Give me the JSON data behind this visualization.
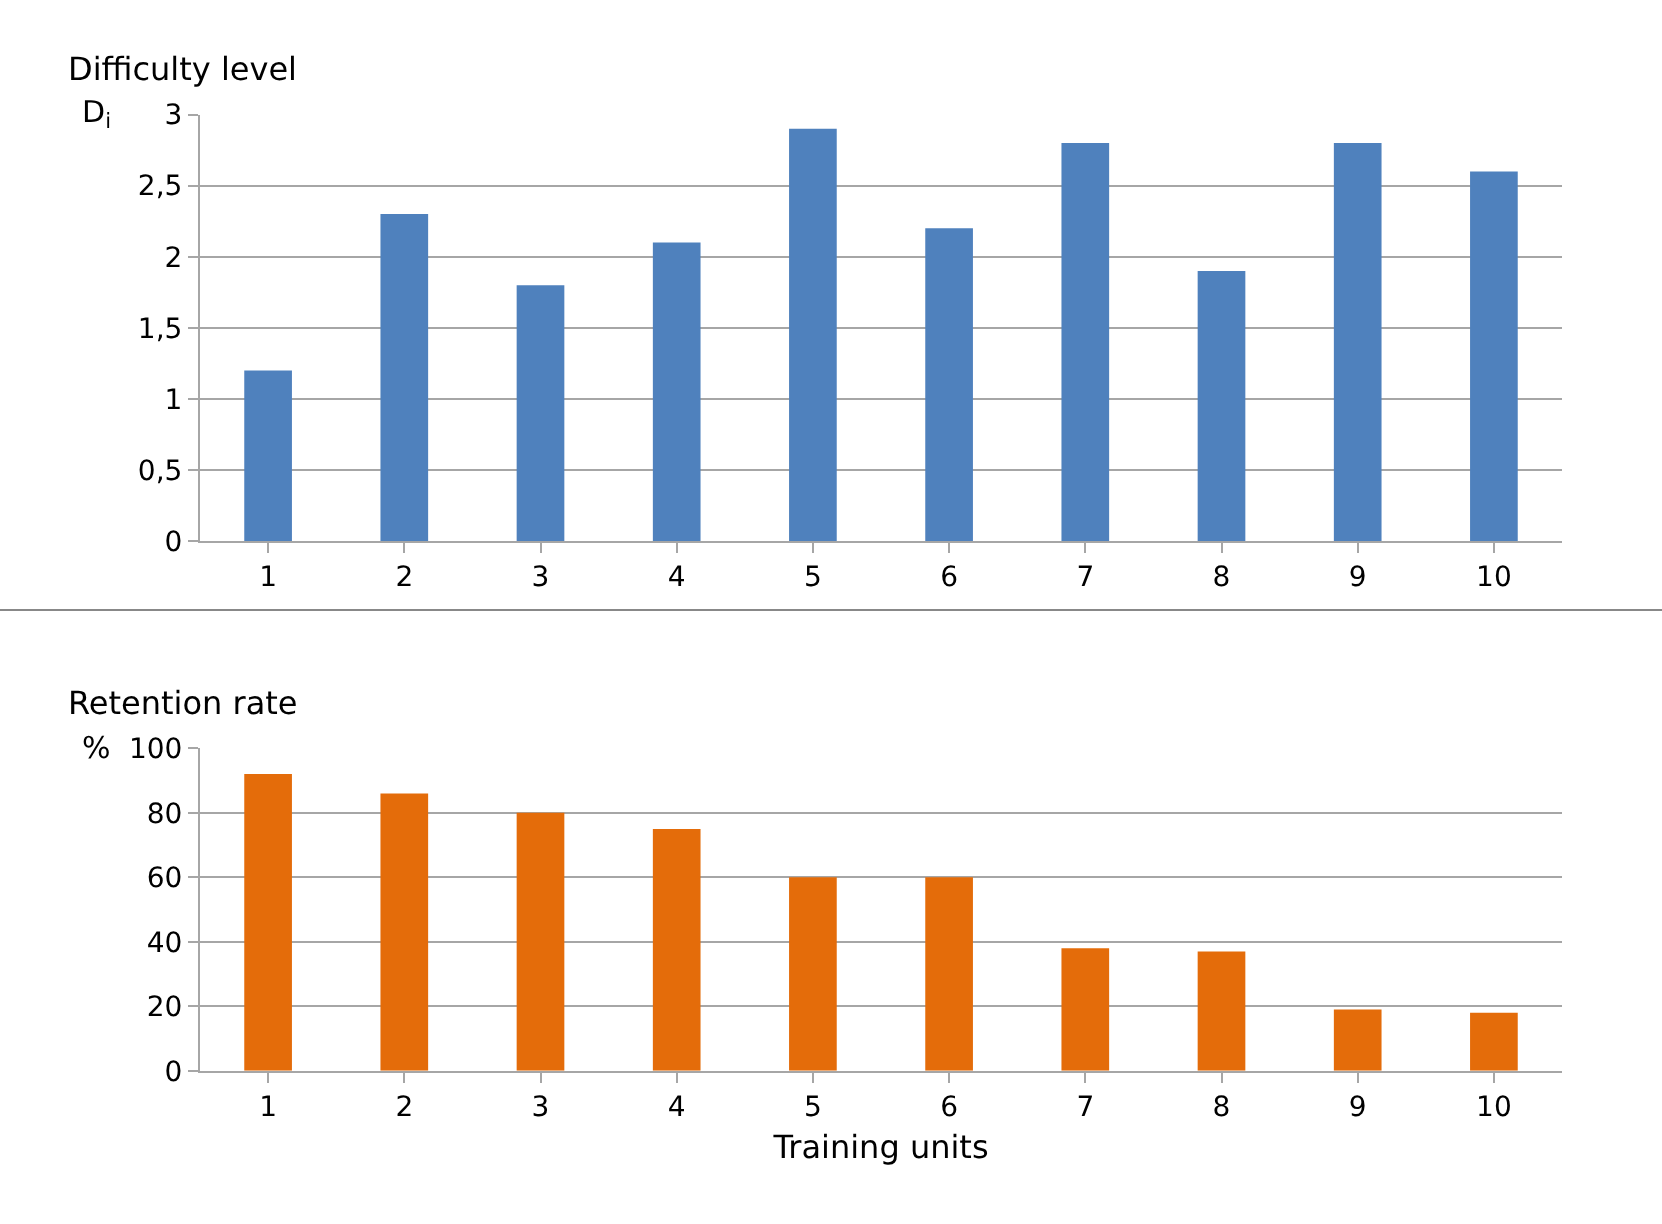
{
  "chart_data": [
    {
      "type": "bar",
      "title": "Difficulty level",
      "ylabel": "D$_{i}$",
      "categories": [
        "1",
        "2",
        "3",
        "4",
        "5",
        "6",
        "7",
        "8",
        "9",
        "10"
      ],
      "values": [
        1.2,
        2.3,
        1.8,
        2.1,
        2.9,
        2.2,
        2.8,
        1.9,
        2.8,
        2.6
      ],
      "color": "#4f81bd",
      "ylim": [
        0,
        3
      ],
      "yticks": [
        0,
        {
          "value": 0.5,
          "label": "0,5"
        },
        1,
        {
          "value": 1.5,
          "label": "1,5"
        },
        2,
        {
          "value": 2.5,
          "label": "2,5"
        },
        3
      ],
      "grid": "y"
    },
    {
      "type": "bar",
      "title": "Retention rate",
      "ylabel": "%",
      "xlabel": "Training units",
      "categories": [
        "1",
        "2",
        "3",
        "4",
        "5",
        "6",
        "7",
        "8",
        "9",
        "10"
      ],
      "values": [
        92,
        86,
        80,
        75,
        60,
        60,
        38,
        37,
        19,
        18
      ],
      "color": "#e46c0a",
      "ylim": [
        0,
        100
      ],
      "yticks": [
        0,
        20,
        40,
        60,
        80,
        100
      ],
      "grid": "y"
    }
  ]
}
